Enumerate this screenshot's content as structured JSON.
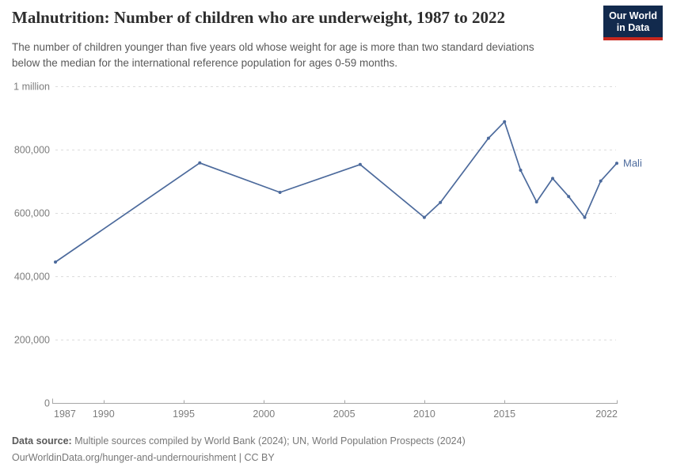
{
  "header": {
    "logo": {
      "line1": "Our World",
      "line2": "in Data",
      "bg_color": "#122A4D",
      "stripe_color": "#C8281E"
    }
  },
  "chart_data": {
    "type": "line",
    "title": "Malnutrition: Number of children who are underweight, 1987 to 2022",
    "subtitle_lines": [
      "The number of children younger than five years old whose weight for age is more than two standard deviations",
      "below the median for the international reference population for ages 0-59 months."
    ],
    "xlabel": "",
    "ylabel": "",
    "xlim": [
      1987,
      2022
    ],
    "ylim": [
      0,
      1000000
    ],
    "grid": true,
    "legend_position": "end-of-line",
    "x_ticks": [
      1987,
      1990,
      1995,
      2000,
      2005,
      2010,
      2015,
      2022
    ],
    "y_ticks": [
      {
        "value": 0,
        "label": "0"
      },
      {
        "value": 200000,
        "label": "200,000"
      },
      {
        "value": 400000,
        "label": "400,000"
      },
      {
        "value": 600000,
        "label": "600,000"
      },
      {
        "value": 800000,
        "label": "800,000"
      },
      {
        "value": 1000000,
        "label": "1 million"
      }
    ],
    "series": [
      {
        "name": "Mali",
        "color": "#4C6A9C",
        "points": [
          [
            1987,
            445000
          ],
          [
            1996,
            758000
          ],
          [
            2001,
            665000
          ],
          [
            2006,
            753000
          ],
          [
            2010,
            586000
          ],
          [
            2011,
            633000
          ],
          [
            2014,
            836000
          ],
          [
            2015,
            888000
          ],
          [
            2016,
            735000
          ],
          [
            2017,
            635000
          ],
          [
            2018,
            709000
          ],
          [
            2019,
            652000
          ],
          [
            2020,
            586000
          ],
          [
            2021,
            701000
          ],
          [
            2022,
            757000
          ]
        ]
      }
    ]
  },
  "footer": {
    "source_label": "Data source:",
    "source_text": "Multiple sources compiled by World Bank (2024); UN, World Population Prospects (2024)",
    "url": "OurWorldinData.org/hunger-and-undernourishment",
    "separator": " | ",
    "license": "CC BY"
  }
}
